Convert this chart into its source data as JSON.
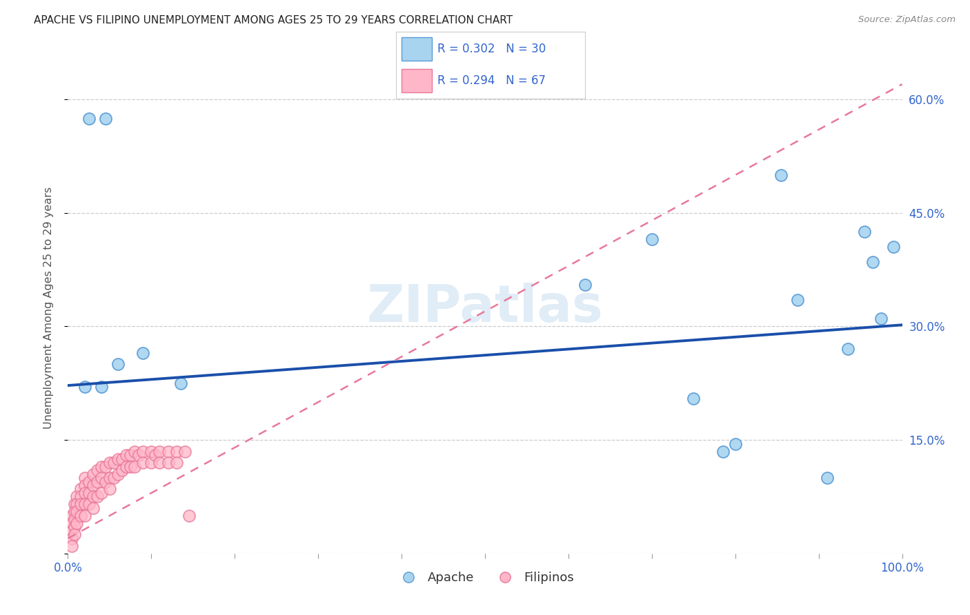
{
  "title": "APACHE VS FILIPINO UNEMPLOYMENT AMONG AGES 25 TO 29 YEARS CORRELATION CHART",
  "source": "Source: ZipAtlas.com",
  "ylabel": "Unemployment Among Ages 25 to 29 years",
  "xlim": [
    0.0,
    1.0
  ],
  "ylim": [
    0.0,
    0.65
  ],
  "xticks": [
    0.0,
    0.1,
    0.2,
    0.3,
    0.4,
    0.5,
    0.6,
    0.7,
    0.8,
    0.9,
    1.0
  ],
  "xticklabels": [
    "0.0%",
    "",
    "",
    "",
    "",
    "",
    "",
    "",
    "",
    "",
    "100.0%"
  ],
  "yticks": [
    0.0,
    0.15,
    0.3,
    0.45,
    0.6
  ],
  "yticklabels": [
    "",
    "15.0%",
    "30.0%",
    "45.0%",
    "60.0%"
  ],
  "watermark": "ZIPatlas",
  "apache_color": "#a8d4f0",
  "apache_edge_color": "#5b9bd5",
  "filipino_color": "#ffb6c8",
  "filipino_edge_color": "#e8789a",
  "trendline_apache_color": "#1a4faa",
  "trendline_filipino_color": "#e8789a",
  "apache_trendline_x0": 0.0,
  "apache_trendline_y0": 0.222,
  "apache_trendline_x1": 1.0,
  "apache_trendline_y1": 0.302,
  "filipino_trendline_x0": 0.0,
  "filipino_trendline_y0": 0.02,
  "filipino_trendline_x1": 1.0,
  "filipino_trendline_y1": 0.62,
  "apache_x": [
    0.025,
    0.045,
    0.02,
    0.04,
    0.06,
    0.09,
    0.135,
    0.75,
    0.8,
    0.855,
    0.875,
    0.91,
    0.935,
    0.955,
    0.965,
    0.975,
    0.99,
    0.62,
    0.7,
    0.785
  ],
  "apache_y": [
    0.575,
    0.575,
    0.22,
    0.22,
    0.25,
    0.265,
    0.225,
    0.205,
    0.145,
    0.5,
    0.335,
    0.1,
    0.27,
    0.425,
    0.385,
    0.31,
    0.405,
    0.355,
    0.415,
    0.135
  ],
  "filipino_x": [
    0.005,
    0.005,
    0.005,
    0.005,
    0.005,
    0.008,
    0.008,
    0.008,
    0.008,
    0.008,
    0.01,
    0.01,
    0.01,
    0.01,
    0.015,
    0.015,
    0.015,
    0.015,
    0.02,
    0.02,
    0.02,
    0.02,
    0.02,
    0.025,
    0.025,
    0.025,
    0.03,
    0.03,
    0.03,
    0.03,
    0.035,
    0.035,
    0.035,
    0.04,
    0.04,
    0.04,
    0.045,
    0.045,
    0.05,
    0.05,
    0.05,
    0.055,
    0.055,
    0.06,
    0.06,
    0.065,
    0.065,
    0.07,
    0.07,
    0.075,
    0.075,
    0.08,
    0.08,
    0.085,
    0.09,
    0.09,
    0.1,
    0.1,
    0.105,
    0.11,
    0.11,
    0.12,
    0.12,
    0.13,
    0.13,
    0.14,
    0.145
  ],
  "filipino_y": [
    0.05,
    0.04,
    0.03,
    0.02,
    0.01,
    0.065,
    0.055,
    0.045,
    0.035,
    0.025,
    0.075,
    0.065,
    0.055,
    0.04,
    0.085,
    0.075,
    0.065,
    0.05,
    0.1,
    0.09,
    0.08,
    0.065,
    0.05,
    0.095,
    0.08,
    0.065,
    0.105,
    0.09,
    0.075,
    0.06,
    0.11,
    0.095,
    0.075,
    0.115,
    0.1,
    0.08,
    0.115,
    0.095,
    0.12,
    0.1,
    0.085,
    0.12,
    0.1,
    0.125,
    0.105,
    0.125,
    0.11,
    0.13,
    0.115,
    0.13,
    0.115,
    0.135,
    0.115,
    0.13,
    0.135,
    0.12,
    0.135,
    0.12,
    0.13,
    0.135,
    0.12,
    0.135,
    0.12,
    0.135,
    0.12,
    0.135,
    0.05
  ]
}
